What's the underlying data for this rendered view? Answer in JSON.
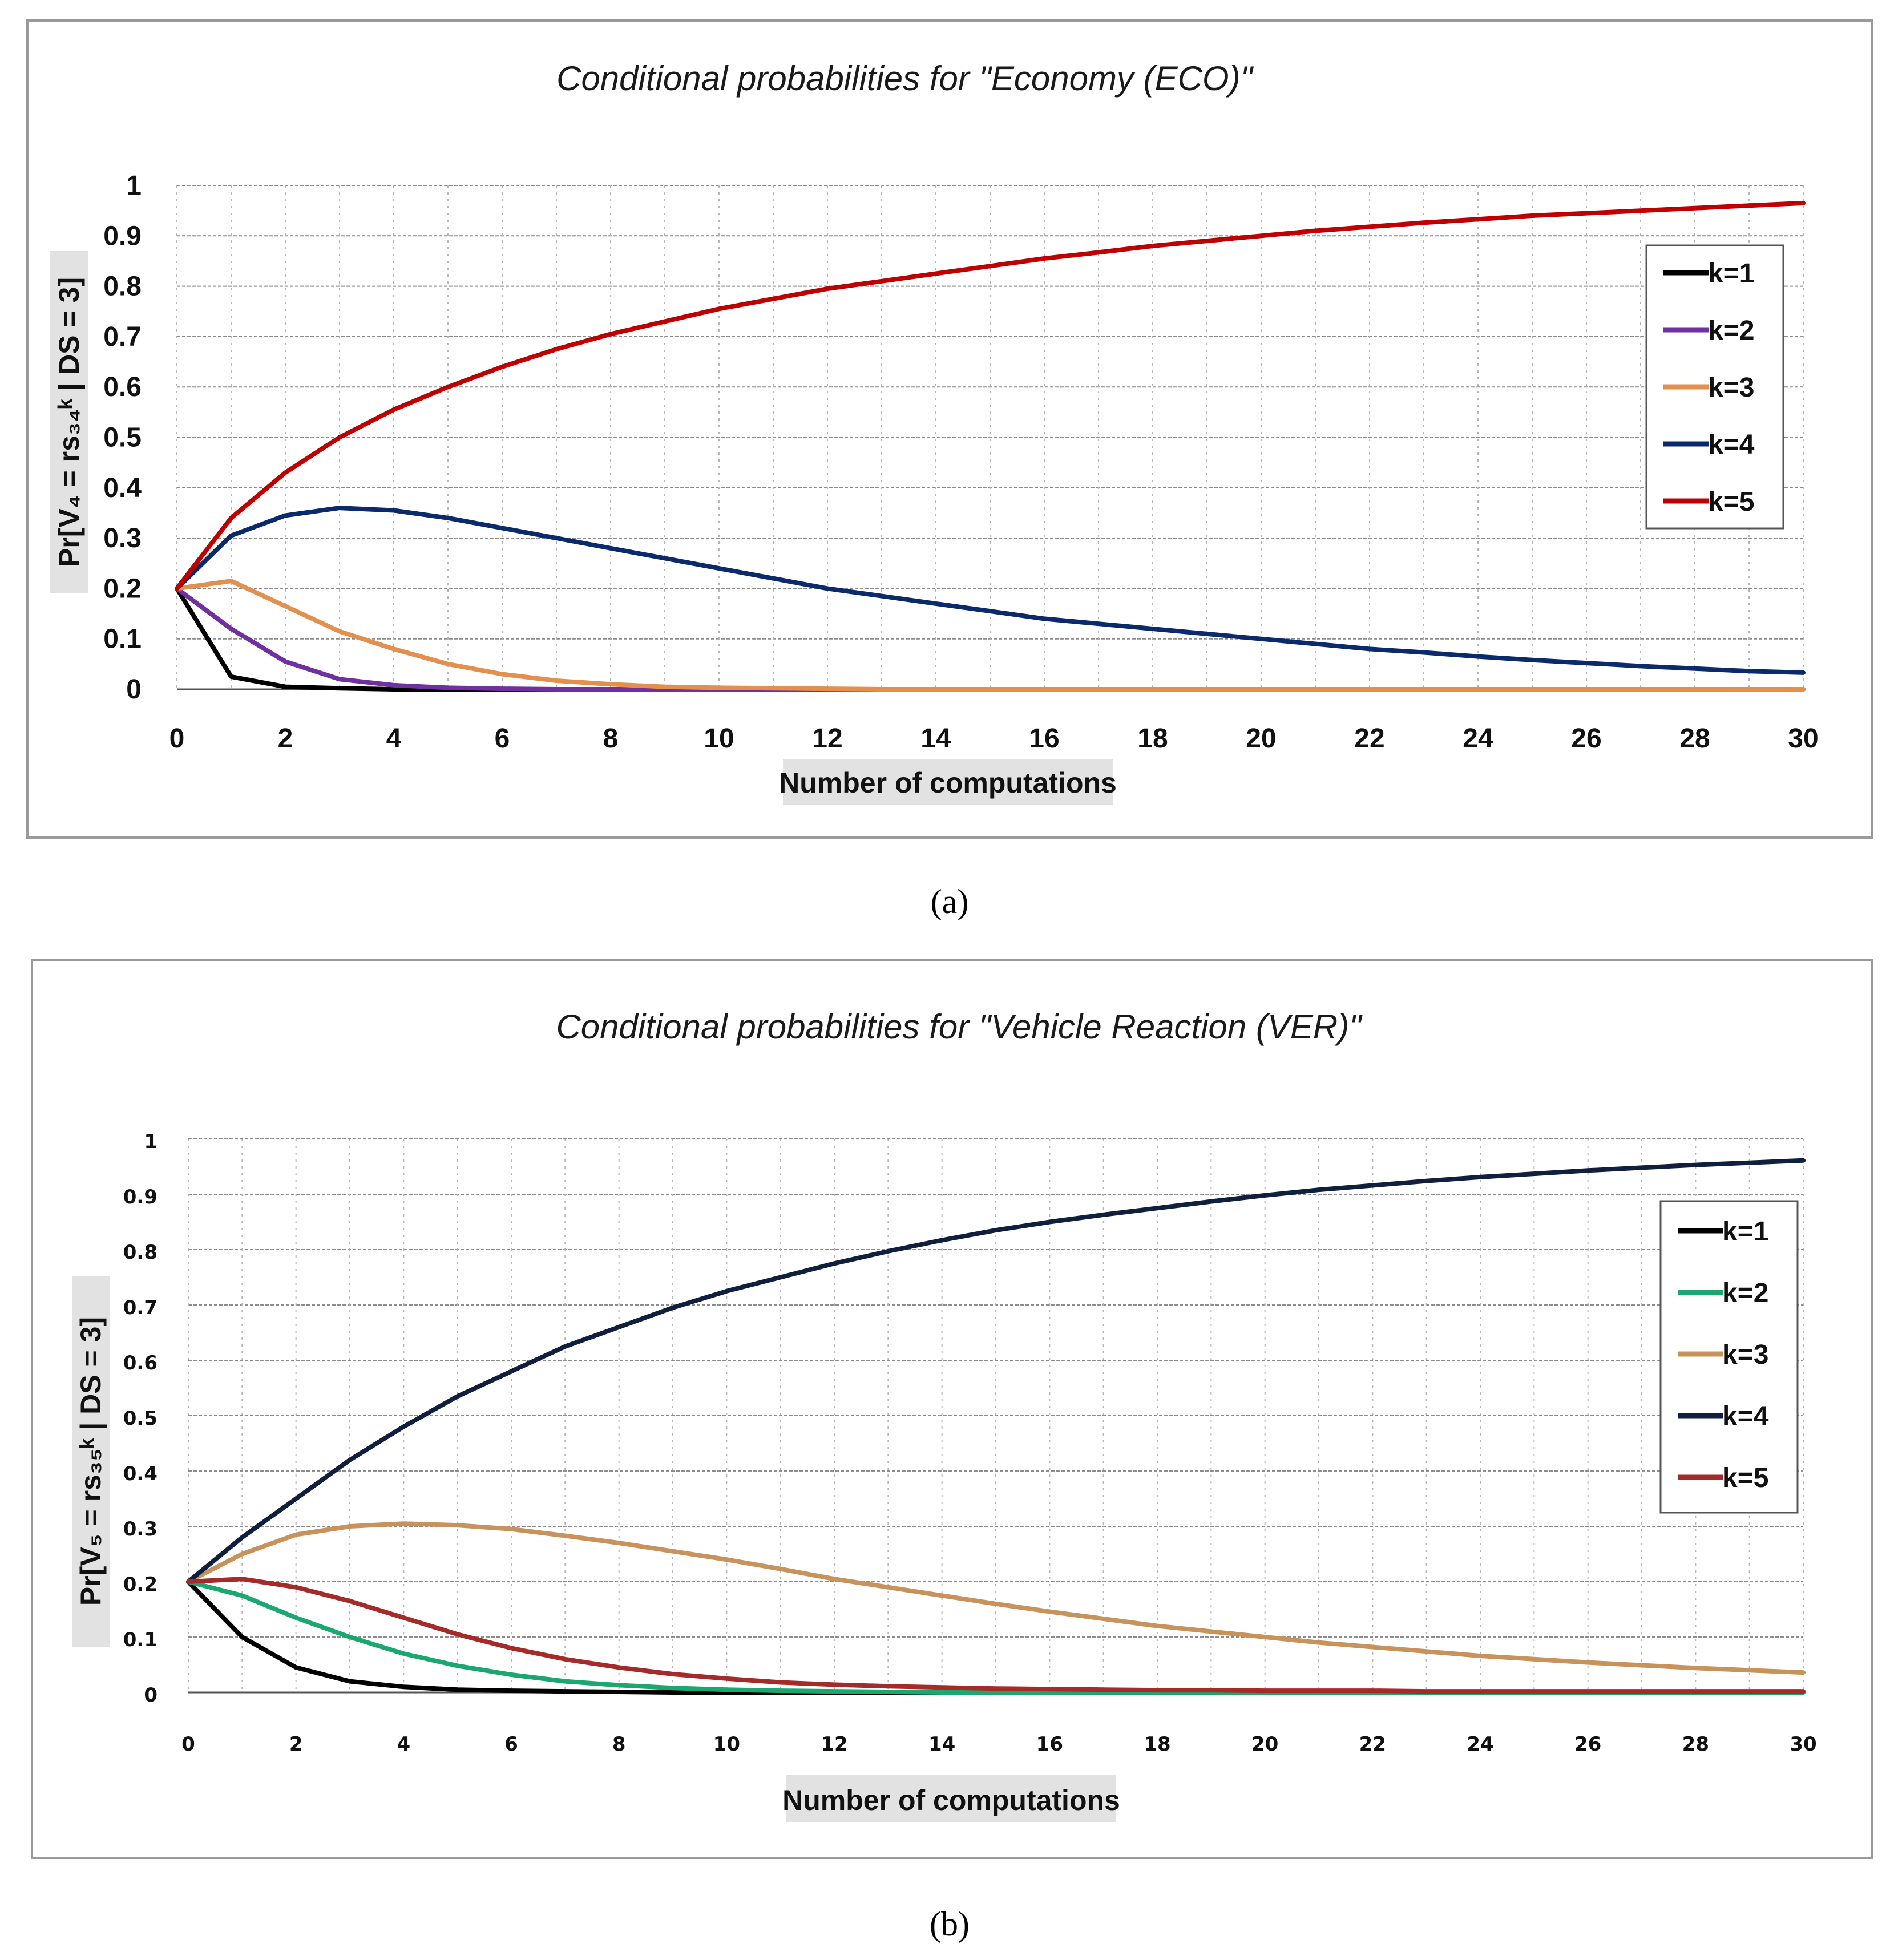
{
  "chart_data": [
    {
      "type": "line",
      "title": "Conditional probabilities for \"Economy (ECO)\"",
      "xlabel": "Number of computations",
      "ylabel": "Pr[V₄ = rs₃₄ᵏ | DS = 3]",
      "xlim": [
        0,
        30
      ],
      "ylim": [
        0,
        1
      ],
      "grid": true,
      "legend": "top-right",
      "x_ticks": [
        "0",
        "2",
        "4",
        "6",
        "8",
        "10",
        "12",
        "14",
        "16",
        "18",
        "20",
        "22",
        "24",
        "26",
        "28",
        "30"
      ],
      "y_ticks": [
        "0",
        "0.1",
        "0.2",
        "0.3",
        "0.4",
        "0.5",
        "0.6",
        "0.7",
        "0.8",
        "0.9",
        "1"
      ],
      "x": [
        0,
        1,
        2,
        3,
        4,
        5,
        6,
        7,
        8,
        9,
        10,
        11,
        12,
        13,
        14,
        15,
        16,
        17,
        18,
        19,
        20,
        21,
        22,
        23,
        24,
        25,
        26,
        27,
        28,
        29,
        30
      ],
      "series": [
        {
          "name": "k=1",
          "color": "#000000",
          "values": [
            0.2,
            0.025,
            0.005,
            0.002,
            0,
            0,
            0,
            0,
            0,
            0,
            0,
            0,
            0,
            0,
            0,
            0,
            0,
            0,
            0,
            0,
            0,
            0,
            0,
            0,
            0,
            0,
            0,
            0,
            0,
            0,
            0
          ]
        },
        {
          "name": "k=2",
          "color": "#7030a0",
          "values": [
            0.2,
            0.12,
            0.055,
            0.02,
            0.008,
            0.003,
            0.001,
            0,
            0,
            0,
            0,
            0,
            0,
            0,
            0,
            0,
            0,
            0,
            0,
            0,
            0,
            0,
            0,
            0,
            0,
            0,
            0,
            0,
            0,
            0,
            0
          ]
        },
        {
          "name": "k=3",
          "color": "#e3904f",
          "values": [
            0.2,
            0.215,
            0.165,
            0.115,
            0.08,
            0.05,
            0.03,
            0.017,
            0.01,
            0.005,
            0.003,
            0.002,
            0.001,
            0,
            0,
            0,
            0,
            0,
            0,
            0,
            0,
            0,
            0,
            0,
            0,
            0,
            0,
            0,
            0,
            0,
            0
          ]
        },
        {
          "name": "k=4",
          "color": "#0b2a6b",
          "values": [
            0.2,
            0.305,
            0.345,
            0.36,
            0.355,
            0.34,
            0.32,
            0.3,
            0.28,
            0.26,
            0.24,
            0.22,
            0.2,
            0.185,
            0.17,
            0.155,
            0.14,
            0.13,
            0.12,
            0.11,
            0.1,
            0.09,
            0.08,
            0.073,
            0.065,
            0.058,
            0.052,
            0.046,
            0.041,
            0.036,
            0.033
          ]
        },
        {
          "name": "k=5",
          "color": "#c00000",
          "values": [
            0.2,
            0.34,
            0.43,
            0.5,
            0.555,
            0.6,
            0.64,
            0.675,
            0.705,
            0.73,
            0.755,
            0.775,
            0.795,
            0.81,
            0.825,
            0.84,
            0.855,
            0.867,
            0.88,
            0.89,
            0.9,
            0.91,
            0.918,
            0.926,
            0.933,
            0.94,
            0.945,
            0.95,
            0.955,
            0.96,
            0.965
          ]
        }
      ],
      "caption": "(a)"
    },
    {
      "type": "line",
      "title": "Conditional probabilities for \"Vehicle Reaction (VER)\"",
      "xlabel": "Number of computations",
      "ylabel": "Pr[V₅ = rs₃₅ᵏ | DS = 3]",
      "xlim": [
        0,
        30
      ],
      "ylim": [
        0,
        1
      ],
      "grid": true,
      "legend": "top-right",
      "x_ticks": [
        "0",
        "2",
        "4",
        "6",
        "8",
        "10",
        "12",
        "14",
        "16",
        "18",
        "20",
        "22",
        "24",
        "26",
        "28",
        "30"
      ],
      "y_ticks": [
        "0",
        "0.1",
        "0.2",
        "0.3",
        "0.4",
        "0.5",
        "0.6",
        "0.7",
        "0.8",
        "0.9",
        "1"
      ],
      "x": [
        0,
        1,
        2,
        3,
        4,
        5,
        6,
        7,
        8,
        9,
        10,
        11,
        12,
        13,
        14,
        15,
        16,
        17,
        18,
        19,
        20,
        21,
        22,
        23,
        24,
        25,
        26,
        27,
        28,
        29,
        30
      ],
      "series": [
        {
          "name": "k=1",
          "color": "#000000",
          "values": [
            0.2,
            0.1,
            0.045,
            0.02,
            0.01,
            0.005,
            0.003,
            0.002,
            0.001,
            0,
            0,
            0,
            0,
            0,
            0,
            0,
            0,
            0,
            0,
            0,
            0,
            0,
            0,
            0,
            0,
            0,
            0,
            0,
            0,
            0,
            0
          ]
        },
        {
          "name": "k=2",
          "color": "#1aa870",
          "values": [
            0.2,
            0.175,
            0.135,
            0.1,
            0.07,
            0.048,
            0.032,
            0.02,
            0.013,
            0.008,
            0.005,
            0.003,
            0.002,
            0.001,
            0,
            0,
            0,
            0,
            0,
            0,
            0,
            0,
            0,
            0,
            0,
            0,
            0,
            0,
            0,
            0,
            0
          ]
        },
        {
          "name": "k=3",
          "color": "#c8935b",
          "values": [
            0.2,
            0.25,
            0.285,
            0.3,
            0.305,
            0.302,
            0.295,
            0.283,
            0.27,
            0.255,
            0.24,
            0.223,
            0.205,
            0.19,
            0.175,
            0.16,
            0.146,
            0.133,
            0.12,
            0.11,
            0.1,
            0.09,
            0.082,
            0.074,
            0.066,
            0.06,
            0.054,
            0.049,
            0.044,
            0.04,
            0.036
          ]
        },
        {
          "name": "k=4",
          "color": "#0f1f3d",
          "values": [
            0.2,
            0.28,
            0.35,
            0.42,
            0.48,
            0.535,
            0.58,
            0.625,
            0.66,
            0.695,
            0.725,
            0.75,
            0.775,
            0.797,
            0.817,
            0.835,
            0.85,
            0.863,
            0.875,
            0.887,
            0.898,
            0.908,
            0.916,
            0.924,
            0.931,
            0.937,
            0.943,
            0.948,
            0.953,
            0.957,
            0.961
          ]
        },
        {
          "name": "k=5",
          "color": "#a52a2a",
          "values": [
            0.2,
            0.205,
            0.19,
            0.165,
            0.135,
            0.105,
            0.08,
            0.06,
            0.045,
            0.033,
            0.025,
            0.018,
            0.014,
            0.011,
            0.009,
            0.007,
            0.006,
            0.005,
            0.004,
            0.004,
            0.003,
            0.003,
            0.003,
            0.002,
            0.002,
            0.002,
            0.002,
            0.002,
            0.002,
            0.002,
            0.002
          ]
        }
      ],
      "caption": "(b)"
    }
  ]
}
